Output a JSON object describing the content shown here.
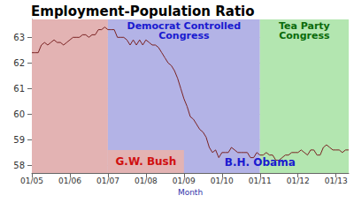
{
  "chart_data": {
    "type": "line",
    "title": "Employment-Population Ratio",
    "x_label": "Month",
    "categories": [
      "01/05",
      null,
      null,
      null,
      null,
      null,
      null,
      null,
      null,
      null,
      null,
      null,
      "01/06",
      null,
      null,
      null,
      null,
      null,
      null,
      null,
      null,
      null,
      null,
      null,
      "01/07",
      null,
      null,
      null,
      null,
      null,
      null,
      null,
      null,
      null,
      null,
      null,
      "01/08",
      null,
      null,
      null,
      null,
      null,
      null,
      null,
      null,
      null,
      null,
      null,
      "01/09",
      null,
      null,
      null,
      null,
      null,
      null,
      null,
      null,
      null,
      null,
      null,
      "01/10",
      null,
      null,
      null,
      null,
      null,
      null,
      null,
      null,
      null,
      null,
      null,
      "01/11",
      null,
      null,
      null,
      null,
      null,
      null,
      null,
      null,
      null,
      null,
      null,
      "01/12",
      null,
      null,
      null,
      null,
      null,
      null,
      null,
      null,
      null,
      null,
      null,
      "01/13",
      null,
      null,
      null,
      null
    ],
    "values": [
      62.4,
      62.4,
      62.4,
      62.7,
      62.8,
      62.7,
      62.8,
      62.9,
      62.8,
      62.8,
      62.7,
      62.8,
      62.9,
      63.0,
      63.0,
      63.0,
      63.1,
      63.1,
      63.0,
      63.1,
      63.1,
      63.3,
      63.3,
      63.4,
      63.3,
      63.3,
      63.3,
      63.0,
      63.0,
      63.0,
      62.9,
      62.7,
      62.9,
      62.7,
      62.9,
      62.7,
      62.9,
      62.8,
      62.7,
      62.7,
      62.6,
      62.4,
      62.2,
      62.0,
      61.9,
      61.7,
      61.4,
      61.0,
      60.6,
      60.3,
      59.9,
      59.8,
      59.6,
      59.4,
      59.3,
      59.1,
      58.7,
      58.5,
      58.6,
      58.3,
      58.5,
      58.5,
      58.5,
      58.7,
      58.6,
      58.5,
      58.5,
      58.5,
      58.5,
      58.3,
      58.3,
      58.5,
      58.4,
      58.4,
      58.5,
      58.4,
      58.4,
      58.2,
      58.2,
      58.3,
      58.4,
      58.4,
      58.5,
      58.5,
      58.5,
      58.6,
      58.5,
      58.4,
      58.6,
      58.6,
      58.4,
      58.4,
      58.7,
      58.8,
      58.7,
      58.6,
      58.6,
      58.6,
      58.5,
      58.6,
      58.6
    ],
    "color": "#7a2323",
    "ylim": [
      57.7,
      63.7
    ],
    "yticks": [
      58,
      59,
      60,
      61,
      62,
      63
    ],
    "grid": true,
    "regions": [
      {
        "start": "01/05",
        "end": "01/07",
        "color": "#e3b3b3"
      },
      {
        "start": "01/07",
        "end": "01/11",
        "color": "#b3b3e6",
        "label": "Democrat Controlled\nCongress"
      },
      {
        "start": "01/11",
        "color": "#b3e6b0",
        "label": "Tea Party\nCongress"
      },
      {
        "start": "01/07",
        "end": "01/09",
        "ylim": [
          57.7,
          58.6
        ],
        "color": "#e3b3b3",
        "label": "G.W. Bush"
      }
    ],
    "annotations": [
      {
        "text": "B.H. Obama",
        "x": "01/11",
        "y": 58.1
      }
    ]
  }
}
